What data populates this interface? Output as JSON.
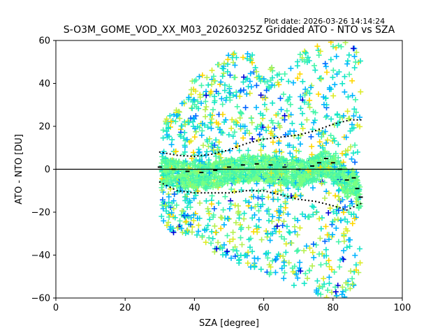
{
  "plot_date_label": "Plot date: 2026-03-26 14:14:24",
  "chart_data": {
    "type": "scatter",
    "title": "S-O3M_GOME_VOD_XX_M03_20260325Z Gridded ATO - NTO vs SZA",
    "xlabel": "SZA [degree]",
    "ylabel": "ATO - NTO [DU]",
    "xlim": [
      0,
      100
    ],
    "ylim": [
      -60,
      60
    ],
    "x_ticks": [
      0,
      20,
      40,
      60,
      80,
      100
    ],
    "y_ticks": [
      -60,
      -40,
      -20,
      0,
      20,
      40,
      60
    ],
    "x_tick_labels": [
      "0",
      "20",
      "40",
      "60",
      "80",
      "100"
    ],
    "y_tick_labels": [
      "−60",
      "−40",
      "−20",
      "0",
      "20",
      "40",
      "60"
    ],
    "zero_line": 0,
    "marker": "+",
    "density_colors": [
      "#0000d8",
      "#0064ff",
      "#00b4ff",
      "#15e6c8",
      "#46f5aa",
      "#78ff82",
      "#b4f050",
      "#dcec28",
      "#ffd700"
    ],
    "stat_color": "#000000",
    "zero_line_color": "#000000",
    "cloud_envelope": [
      {
        "x": 30.5,
        "lo": -28,
        "hi": 22
      },
      {
        "x": 35,
        "lo": -30,
        "hi": 28
      },
      {
        "x": 40,
        "lo": -30,
        "hi": 44
      },
      {
        "x": 45,
        "lo": -38,
        "hi": 46
      },
      {
        "x": 50,
        "lo": -42,
        "hi": 55
      },
      {
        "x": 55,
        "lo": -45,
        "hi": 58
      },
      {
        "x": 60,
        "lo": -48,
        "hi": 50
      },
      {
        "x": 65,
        "lo": -52,
        "hi": 46
      },
      {
        "x": 70,
        "lo": -58,
        "hi": 55
      },
      {
        "x": 75,
        "lo": -60,
        "hi": 58
      },
      {
        "x": 80,
        "lo": -60,
        "hi": 60
      },
      {
        "x": 85,
        "lo": -60,
        "hi": 60
      },
      {
        "x": 88,
        "lo": -55,
        "hi": 58
      }
    ],
    "mean_line": [
      {
        "x": 30,
        "y": 1
      },
      {
        "x": 34,
        "y": 0
      },
      {
        "x": 38,
        "y": -1
      },
      {
        "x": 42,
        "y": -1.5
      },
      {
        "x": 46,
        "y": -0.5
      },
      {
        "x": 50,
        "y": 1
      },
      {
        "x": 54,
        "y": 2
      },
      {
        "x": 58,
        "y": 2.5
      },
      {
        "x": 62,
        "y": 2
      },
      {
        "x": 66,
        "y": 1
      },
      {
        "x": 70,
        "y": 0
      },
      {
        "x": 74,
        "y": 1.5
      },
      {
        "x": 76,
        "y": 3
      },
      {
        "x": 78,
        "y": 5
      },
      {
        "x": 80,
        "y": 3
      },
      {
        "x": 82,
        "y": 0
      },
      {
        "x": 84,
        "y": -5
      },
      {
        "x": 86,
        "y": -4
      },
      {
        "x": 87,
        "y": -9
      },
      {
        "x": 88,
        "y": -13
      }
    ],
    "upper_sigma_line": [
      {
        "x": 30,
        "y": 8
      },
      {
        "x": 35,
        "y": 6.5
      },
      {
        "x": 40,
        "y": 6
      },
      {
        "x": 45,
        "y": 7
      },
      {
        "x": 50,
        "y": 9
      },
      {
        "x": 55,
        "y": 12
      },
      {
        "x": 60,
        "y": 14
      },
      {
        "x": 65,
        "y": 15
      },
      {
        "x": 70,
        "y": 16
      },
      {
        "x": 75,
        "y": 18
      },
      {
        "x": 80,
        "y": 21
      },
      {
        "x": 85,
        "y": 23
      },
      {
        "x": 88,
        "y": 23
      }
    ],
    "lower_sigma_line": [
      {
        "x": 30,
        "y": -6
      },
      {
        "x": 35,
        "y": -10
      },
      {
        "x": 40,
        "y": -11
      },
      {
        "x": 45,
        "y": -11
      },
      {
        "x": 50,
        "y": -11
      },
      {
        "x": 55,
        "y": -10
      },
      {
        "x": 60,
        "y": -10
      },
      {
        "x": 65,
        "y": -12
      },
      {
        "x": 70,
        "y": -14
      },
      {
        "x": 75,
        "y": -15
      },
      {
        "x": 80,
        "y": -17
      },
      {
        "x": 84,
        "y": -19
      },
      {
        "x": 88,
        "y": -16
      }
    ]
  }
}
